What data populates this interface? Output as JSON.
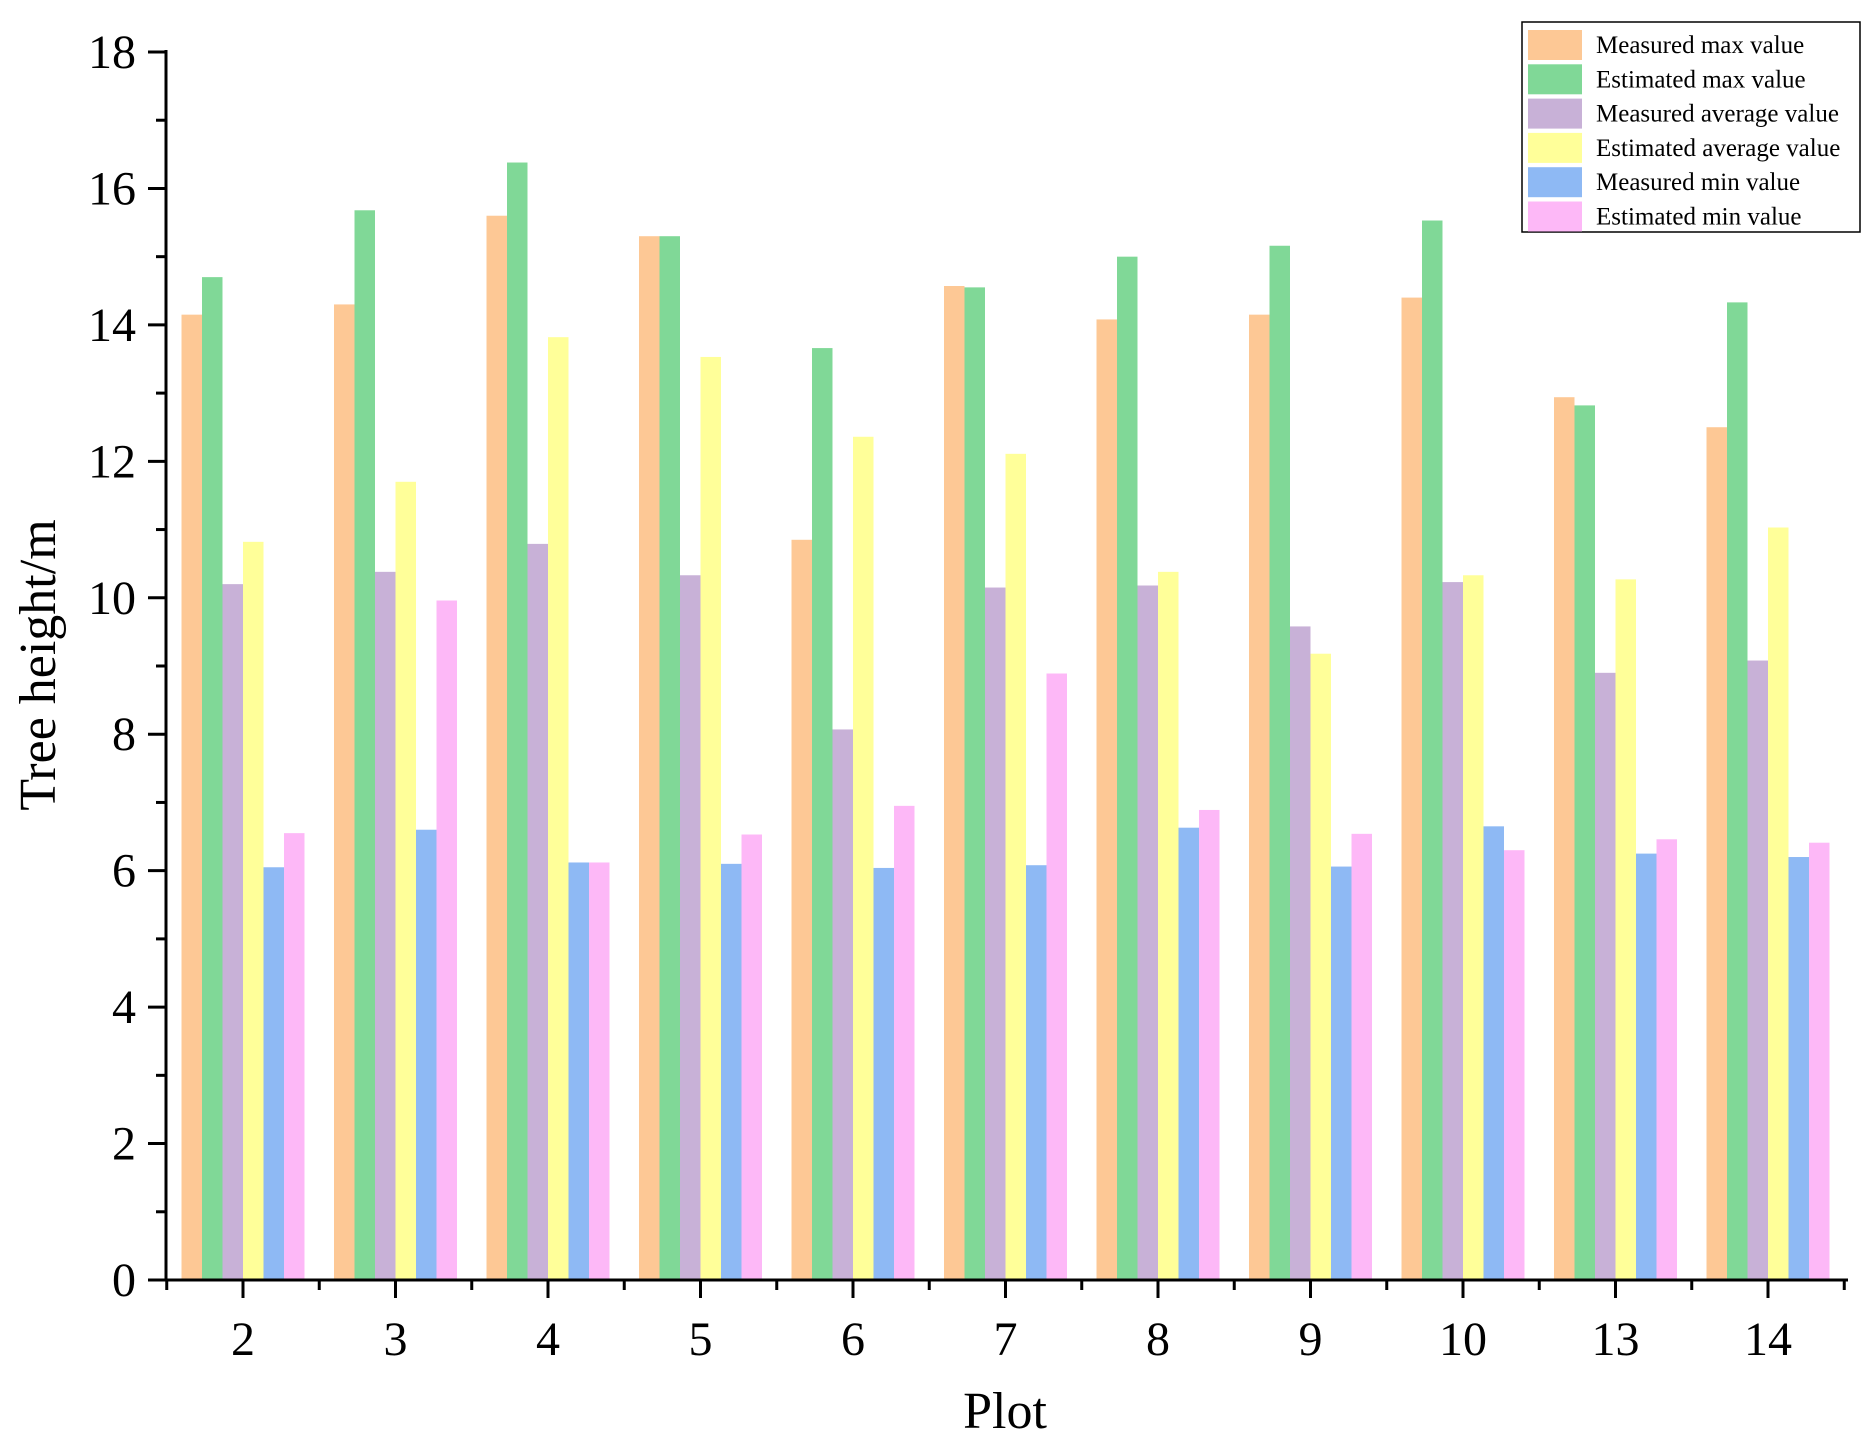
{
  "chart_data": {
    "type": "bar",
    "title": "",
    "xlabel": "Plot",
    "ylabel": "Tree height/m",
    "ylim": [
      0,
      18
    ],
    "yticks": [
      "0",
      "2",
      "4",
      "6",
      "8",
      "10",
      "12",
      "14",
      "16",
      "18"
    ],
    "categories": [
      "2",
      "3",
      "4",
      "5",
      "6",
      "7",
      "8",
      "9",
      "10",
      "13",
      "14"
    ],
    "grid": false,
    "legend_position": "top-right",
    "series": [
      {
        "name": "Measured max value",
        "color": "#FDC895",
        "values": [
          14.15,
          14.3,
          15.6,
          15.3,
          10.85,
          14.57,
          14.08,
          14.15,
          14.4,
          12.94,
          12.5
        ]
      },
      {
        "name": "Estimated max value",
        "color": "#80D897",
        "values": [
          14.7,
          15.68,
          16.38,
          15.3,
          13.66,
          14.55,
          15.0,
          15.16,
          15.53,
          12.82,
          14.33
        ]
      },
      {
        "name": "Measured average value",
        "color": "#C8B1D7",
        "values": [
          10.2,
          10.38,
          10.79,
          10.33,
          8.07,
          10.15,
          10.18,
          9.58,
          10.23,
          8.9,
          9.08
        ]
      },
      {
        "name": "Estimated average value",
        "color": "#FFFF99",
        "values": [
          10.82,
          11.7,
          13.82,
          13.53,
          12.36,
          12.11,
          10.38,
          9.18,
          10.33,
          10.27,
          11.03
        ]
      },
      {
        "name": "Measured min value",
        "color": "#8EB9F4",
        "values": [
          6.05,
          6.6,
          6.12,
          6.1,
          6.04,
          6.08,
          6.63,
          6.06,
          6.65,
          6.25,
          6.2
        ]
      },
      {
        "name": "Estimated min value",
        "color": "#FDB8F7",
        "values": [
          6.55,
          9.96,
          6.12,
          6.53,
          6.95,
          8.89,
          6.89,
          6.54,
          6.3,
          6.46,
          6.41
        ]
      }
    ]
  }
}
